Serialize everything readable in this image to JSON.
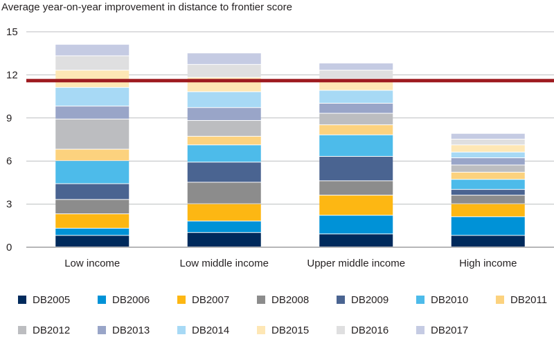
{
  "chart_data": {
    "type": "bar",
    "stacked": true,
    "title": "Average year-on-year improvement in distance to frontier score",
    "xlabel": "",
    "ylabel": "",
    "ylim": [
      0,
      15
    ],
    "yticks": [
      0,
      3,
      6,
      9,
      12,
      15
    ],
    "grid": true,
    "legend_position": "bottom",
    "categories": [
      "Low income",
      "Low middle income",
      "Upper middle income",
      "High income"
    ],
    "series": [
      {
        "name": "DB2005",
        "color": "#002a5c",
        "values": [
          0.8,
          1.0,
          0.9,
          0.8
        ]
      },
      {
        "name": "DB2006",
        "color": "#0092d7",
        "values": [
          0.5,
          0.8,
          1.3,
          1.3
        ]
      },
      {
        "name": "DB2007",
        "color": "#fdb713",
        "values": [
          1.0,
          1.2,
          1.4,
          0.9
        ]
      },
      {
        "name": "DB2008",
        "color": "#8c8c8c",
        "values": [
          1.0,
          1.5,
          1.0,
          0.6
        ]
      },
      {
        "name": "DB2009",
        "color": "#4a6491",
        "values": [
          1.1,
          1.4,
          1.7,
          0.4
        ]
      },
      {
        "name": "DB2010",
        "color": "#4dbbea",
        "values": [
          1.6,
          1.2,
          1.5,
          0.7
        ]
      },
      {
        "name": "DB2011",
        "color": "#fcd27e",
        "values": [
          0.8,
          0.6,
          0.7,
          0.5
        ]
      },
      {
        "name": "DB2012",
        "color": "#bcbdc0",
        "values": [
          2.1,
          1.1,
          0.8,
          0.5
        ]
      },
      {
        "name": "DB2013",
        "color": "#99a5c8",
        "values": [
          0.9,
          0.9,
          0.7,
          0.5
        ]
      },
      {
        "name": "DB2014",
        "color": "#a7d9f5",
        "values": [
          1.3,
          1.1,
          0.9,
          0.4
        ]
      },
      {
        "name": "DB2015",
        "color": "#fee7b5",
        "values": [
          1.2,
          1.0,
          0.8,
          0.5
        ]
      },
      {
        "name": "DB2016",
        "color": "#dfdfe0",
        "values": [
          1.0,
          0.9,
          0.6,
          0.4
        ]
      },
      {
        "name": "DB2017",
        "color": "#c5cbe3",
        "values": [
          0.8,
          0.8,
          0.5,
          0.4
        ]
      }
    ],
    "reference_line": {
      "value": 11.6,
      "color": "#9e1b20"
    }
  }
}
